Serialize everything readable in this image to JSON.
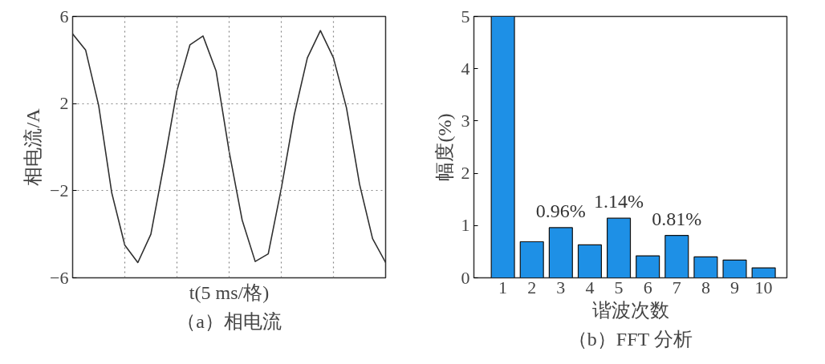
{
  "chart_data": [
    {
      "type": "line",
      "title": "（a）相电流",
      "xlabel": "t(5 ms/格)",
      "ylabel": "相电流/A",
      "categories": [
        null,
        null,
        null,
        null,
        null,
        null,
        null,
        null,
        null,
        null,
        null,
        null,
        null,
        null,
        null,
        null,
        null,
        null,
        null,
        null,
        null,
        null,
        null,
        null,
        null
      ],
      "series": [
        {
          "color": "#303030",
          "values": [
            5.2,
            4.45,
            1.9,
            -2.1,
            -4.5,
            -5.3,
            -4.0,
            -0.8,
            2.6,
            4.7,
            5.1,
            3.5,
            -0.2,
            -3.35,
            -5.25,
            -4.9,
            -1.9,
            1.5,
            4.1,
            5.35,
            4.1,
            1.8,
            -1.7,
            -4.2,
            -5.3
          ]
        }
      ],
      "ylim": [
        -6,
        6
      ],
      "yticks": [
        {
          "value": -6,
          "label": "−6"
        },
        {
          "value": -2,
          "label": "−2"
        },
        2,
        6
      ],
      "grid": true,
      "line_style": "solid"
    },
    {
      "type": "bar",
      "title": "（b）FFT 分析",
      "xlabel": "谐波次数",
      "ylabel": "幅度(%)",
      "categories": [
        "1",
        "2",
        "3",
        "4",
        "5",
        "6",
        "7",
        "8",
        "9",
        "10"
      ],
      "values": [
        5,
        0.69,
        0.96,
        0.63,
        1.14,
        0.42,
        0.81,
        0.4,
        0.34,
        0.19
      ],
      "color": "#1e90e6",
      "ylim": [
        0,
        5
      ],
      "yticks": [
        0,
        1,
        2,
        3,
        4,
        5
      ],
      "grid": false,
      "annotations": [
        {
          "text": "0.96%",
          "x": "3",
          "y": 0.96
        },
        {
          "text": "1.14%",
          "x": "5",
          "y": 1.14
        },
        {
          "text": "0.81%",
          "x": "7",
          "y": 0.81
        }
      ]
    }
  ]
}
